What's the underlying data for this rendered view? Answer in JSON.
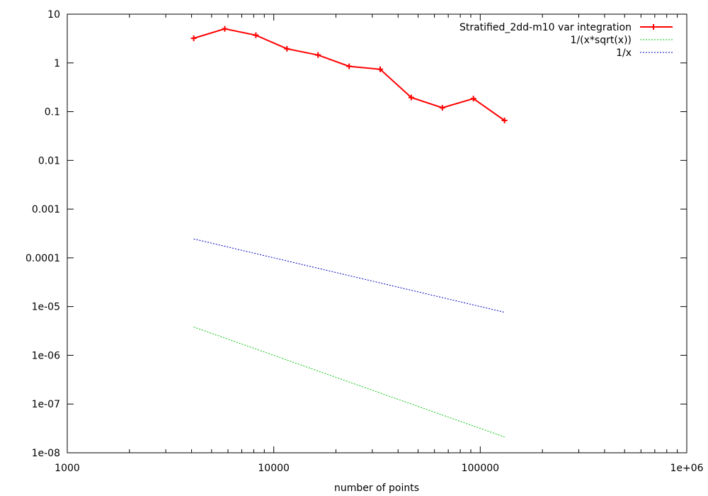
{
  "chart_data": {
    "type": "line",
    "xlabel": "number of points",
    "ylabel": "",
    "title": "",
    "xscale": "log",
    "yscale": "log",
    "xlim": [
      1000,
      1000000
    ],
    "ylim": [
      1e-08,
      10
    ],
    "x_ticks": [
      "1000",
      "10000",
      "100000",
      "1e+06"
    ],
    "y_ticks": [
      "1e-08",
      "1e-07",
      "1e-06",
      "1e-05",
      "0.0001",
      "0.001",
      "0.01",
      "0.1",
      "1",
      "10"
    ],
    "grid": false,
    "legend_position": "top-right",
    "series": [
      {
        "name": "Stratified_2dd-m10 var integration",
        "color": "#ff0000",
        "style": "solid-points",
        "x": [
          4096,
          5793,
          8192,
          11585,
          16384,
          23170,
          32768,
          46341,
          65536,
          92682,
          131072
        ],
        "y": [
          3.2,
          5.0,
          3.7,
          1.95,
          1.45,
          0.85,
          0.74,
          0.195,
          0.12,
          0.185,
          0.066
        ]
      },
      {
        "name": "1/(x*sqrt(x))",
        "color": "#00c000",
        "style": "dotted",
        "x": [
          4096,
          131072
        ],
        "y": [
          3.81e-06,
          2.11e-08
        ]
      },
      {
        "name": "1/x",
        "color": "#0000c0",
        "style": "dotted",
        "x": [
          4096,
          131072
        ],
        "y": [
          0.000244,
          7.63e-06
        ]
      }
    ]
  }
}
